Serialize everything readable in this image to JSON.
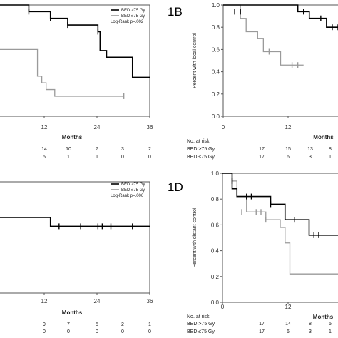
{
  "colors": {
    "high": "#000000",
    "low": "#9a9a9a",
    "frame": "#555555"
  },
  "chart_data": [
    {
      "type": "line",
      "panel_label": "",
      "xlabel": "Months",
      "ylabel": "",
      "xlim": [
        0,
        36
      ],
      "ylim": [
        0,
        1
      ],
      "xticks": [
        "12",
        "24",
        "36"
      ],
      "yticks": [],
      "legend": [
        "BED >75 Gy",
        "BED ≤75 Gy",
        "Log-Rank p=.002"
      ],
      "legend_position": "top-right",
      "series": [
        {
          "name": "BED >75 Gy",
          "x": [
            0,
            8,
            13,
            17,
            24,
            24.5,
            26,
            32,
            36
          ],
          "y": [
            1.0,
            0.94,
            0.88,
            0.82,
            0.76,
            0.59,
            0.53,
            0.35,
            0.35
          ],
          "censors": [
            [
              8,
              0.94
            ],
            [
              13,
              0.88
            ],
            [
              17,
              0.82
            ],
            [
              24,
              0.76
            ]
          ]
        },
        {
          "name": "BED ≤75 Gy",
          "x": [
            0,
            10,
            11,
            12,
            14,
            30
          ],
          "y": [
            0.6,
            0.36,
            0.3,
            0.24,
            0.18,
            0.18
          ],
          "censors": [
            [
              30,
              0.18
            ]
          ]
        }
      ],
      "risk_table": {
        "header": "",
        "rows": [
          {
            "label": "",
            "values": [
              "14",
              "10",
              "7",
              "3",
              "2"
            ]
          },
          {
            "label": "",
            "values": [
              "5",
              "1",
              "1",
              "0",
              "0"
            ]
          }
        ]
      }
    },
    {
      "type": "line",
      "panel_label": "1B",
      "xlabel": "Months",
      "ylabel": "Percent with local control",
      "xlim": [
        0,
        20
      ],
      "ylim": [
        0,
        1
      ],
      "xticks": [
        "0",
        "12"
      ],
      "yticks": [
        "0.0",
        "0.2",
        "0.4",
        "0.6",
        "0.8",
        "1.0"
      ],
      "legend": [],
      "legend_position": "",
      "series": [
        {
          "name": "BED >75 Gy",
          "x": [
            0,
            13,
            15,
            18,
            20
          ],
          "y": [
            1.0,
            0.94,
            0.88,
            0.8,
            0.8
          ],
          "censors": [
            [
              2,
              0.94
            ],
            [
              3,
              0.94
            ],
            [
              14,
              0.94
            ],
            [
              17,
              0.88
            ],
            [
              19,
              0.8
            ],
            [
              20,
              0.8
            ]
          ]
        },
        {
          "name": "BED ≤75 Gy",
          "x": [
            0,
            3,
            4,
            6,
            7,
            10,
            14
          ],
          "y": [
            1.0,
            0.88,
            0.76,
            0.7,
            0.58,
            0.46,
            0.46
          ],
          "censors": [
            [
              2,
              0.94
            ],
            [
              8,
              0.58
            ],
            [
              12,
              0.46
            ],
            [
              13,
              0.46
            ]
          ]
        }
      ],
      "risk_table": {
        "header": "No. at risk",
        "rows": [
          {
            "label": "BED >75 Gy",
            "values": [
              "17",
              "15",
              "13",
              "8"
            ]
          },
          {
            "label": "BED ≤75 Gy",
            "values": [
              "17",
              "6",
              "3",
              "1"
            ]
          }
        ]
      }
    },
    {
      "type": "line",
      "panel_label": "",
      "xlabel": "Months",
      "ylabel": "",
      "xlim": [
        0,
        36
      ],
      "ylim": [
        0,
        1
      ],
      "xticks": [
        "12",
        "24",
        "36"
      ],
      "yticks": [],
      "legend": [
        "BED >75 Gy",
        "BED ≤75 Gy",
        "Log-Rank p=.006"
      ],
      "legend_position": "top-right",
      "series": [
        {
          "name": "BED >75 Gy",
          "x": [
            0,
            13,
            36
          ],
          "y": [
            0.68,
            0.6,
            0.6
          ],
          "censors": [
            [
              15,
              0.6
            ],
            [
              20,
              0.6
            ],
            [
              24,
              0.6
            ],
            [
              25,
              0.6
            ],
            [
              27,
              0.6
            ],
            [
              32,
              0.6
            ]
          ]
        },
        {
          "name": "BED ≤75 Gy",
          "x": [
            0,
            13,
            36
          ],
          "y": [
            0.68,
            0.6,
            0.6
          ],
          "censors": []
        }
      ],
      "risk_table": {
        "header": "",
        "rows": [
          {
            "label": "",
            "values": [
              "9",
              "7",
              "5",
              "2",
              "1"
            ]
          },
          {
            "label": "",
            "values": [
              "0",
              "0",
              "0",
              "0",
              "0"
            ]
          }
        ]
      }
    },
    {
      "type": "line",
      "panel_label": "1D",
      "xlabel": "Months",
      "ylabel": "Percent with distant control",
      "xlim": [
        0,
        24
      ],
      "ylim": [
        0,
        1
      ],
      "xticks": [
        "0",
        "12"
      ],
      "yticks": [
        "0.0",
        "0.2",
        "0.4",
        "0.6",
        "0.8",
        "1.0"
      ],
      "legend": [],
      "legend_position": "",
      "series": [
        {
          "name": "BED >75 Gy",
          "x": [
            0,
            2,
            3,
            10,
            13,
            18,
            24
          ],
          "y": [
            1.0,
            0.88,
            0.82,
            0.76,
            0.64,
            0.52,
            0.52
          ],
          "censors": [
            [
              2,
              0.94
            ],
            [
              5,
              0.82
            ],
            [
              6,
              0.82
            ],
            [
              10,
              0.76
            ],
            [
              15,
              0.64
            ],
            [
              19,
              0.52
            ],
            [
              20,
              0.52
            ]
          ]
        },
        {
          "name": "BED ≤75 Gy",
          "x": [
            0,
            2,
            3,
            5,
            9,
            12,
            13,
            14,
            24
          ],
          "y": [
            1.0,
            0.94,
            0.82,
            0.7,
            0.64,
            0.58,
            0.46,
            0.22,
            0.22
          ],
          "censors": [
            [
              4,
              0.7
            ],
            [
              7,
              0.7
            ],
            [
              8,
              0.7
            ],
            [
              9,
              0.64
            ]
          ]
        }
      ],
      "risk_table": {
        "header": "No. at risk",
        "rows": [
          {
            "label": "BED >75 Gy",
            "values": [
              "17",
              "14",
              "8",
              "5"
            ]
          },
          {
            "label": "BED ≤75 Gy",
            "values": [
              "17",
              "6",
              "3",
              "1"
            ]
          }
        ]
      }
    }
  ]
}
